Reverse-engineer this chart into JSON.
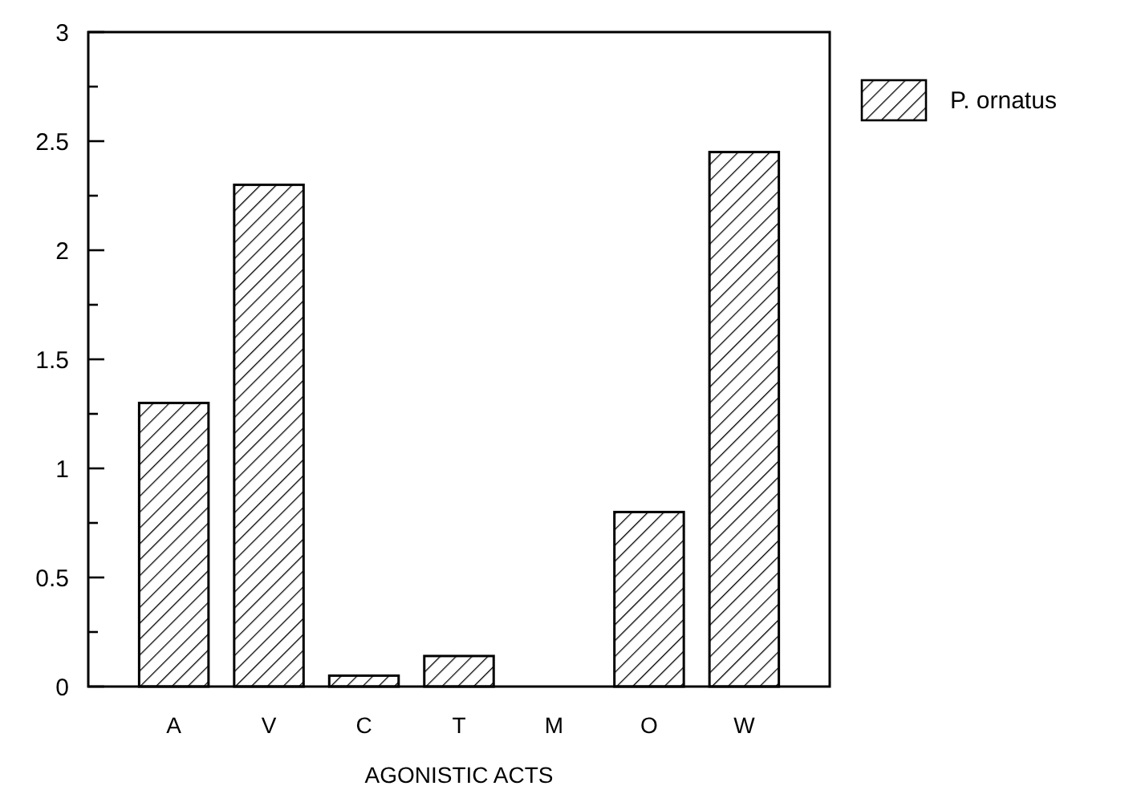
{
  "chart_data": {
    "type": "bar",
    "xlabel": "AGONISTIC ACTS",
    "categories": [
      "A",
      "V",
      "C",
      "T",
      "M",
      "O",
      "W"
    ],
    "series": [
      {
        "name": "P. ornatus",
        "color": "#000000",
        "values": [
          1.3,
          2.3,
          0.05,
          0.14,
          0,
          0.8,
          2.45
        ]
      }
    ],
    "ylim": [
      0,
      3
    ],
    "yticks": [
      0,
      {
        "value": 0.25,
        "label": null
      },
      0.5,
      {
        "value": 0.75,
        "label": null
      },
      1,
      {
        "value": 1.25,
        "label": null
      },
      1.5,
      {
        "value": 1.75,
        "label": null
      },
      2,
      {
        "value": 2.25,
        "label": null
      },
      2.5,
      {
        "value": 2.75,
        "label": null
      },
      3
    ],
    "grid": false,
    "legend": "top right"
  }
}
